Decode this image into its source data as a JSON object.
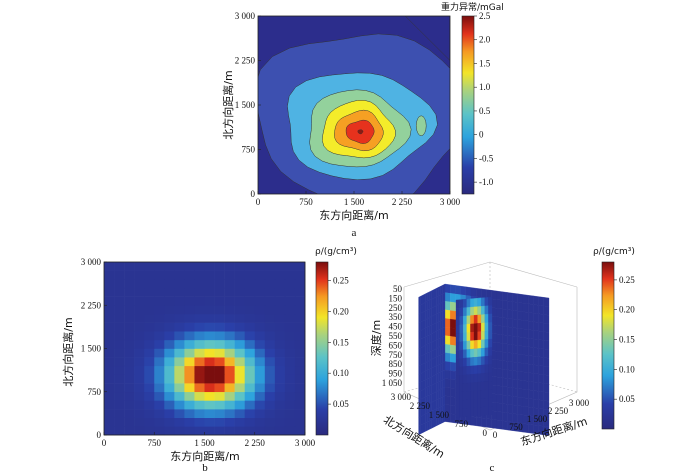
{
  "chart_data": [
    {
      "panel": "a",
      "type": "heatmap",
      "subtype": "filled-contour",
      "xlabel": "东方向距离/m",
      "ylabel": "北方向距离/m",
      "xticks": [
        "0",
        "750",
        "1 500",
        "2 250",
        "3 000"
      ],
      "yticks": [
        "0",
        "750",
        "1 500",
        "2 250",
        "3 000"
      ],
      "xlim": [
        0,
        3000
      ],
      "ylim": [
        0,
        3000
      ],
      "colorbar": {
        "label": "重力异常/mGal",
        "range": [
          -1.25,
          2.5
        ],
        "ticks": [
          "-1.0",
          "-0.5",
          "0",
          "0.5",
          "1.0",
          "1.5",
          "2.0",
          "2.5"
        ],
        "tick_values": [
          -1.0,
          -0.5,
          0,
          0.5,
          1.0,
          1.5,
          2.0,
          2.5
        ]
      },
      "anomaly_center": [
        1600,
        1050
      ],
      "peak_value": 2.4,
      "contour_levels": [
        -1.0,
        -0.5,
        0,
        0.5,
        1.0,
        1.5,
        2.0
      ],
      "colors": [
        "#2c2d8c",
        "#3d50b0",
        "#4fb3e3",
        "#93d19c",
        "#f4ec2a",
        "#f6a023",
        "#e6321d",
        "#8c1a12"
      ]
    },
    {
      "panel": "b",
      "type": "heatmap",
      "subtype": "pixel-grid",
      "grid": [
        20,
        20
      ],
      "xlabel": "东方向距离/m",
      "ylabel": "北方向距离/m",
      "xticks": [
        "0",
        "750",
        "1 500",
        "2 250",
        "3 000"
      ],
      "yticks": [
        "0",
        "750",
        "1 500",
        "2 250",
        "3 000"
      ],
      "xlim": [
        0,
        3000
      ],
      "ylim": [
        0,
        3000
      ],
      "colorbar": {
        "label": "ρ/(g/cm³)",
        "range": [
          0,
          0.28
        ],
        "ticks": [
          "0.05",
          "0.10",
          "0.15",
          "0.20",
          "0.25"
        ],
        "tick_values": [
          0.05,
          0.1,
          0.15,
          0.2,
          0.25
        ]
      },
      "anomaly_center": [
        1600,
        1050
      ],
      "peak_value": 0.28
    },
    {
      "panel": "c",
      "type": "heatmap",
      "subtype": "3d-slices",
      "xlabel": "东方向距离/m",
      "ylabel": "北方向距离/m",
      "zlabel": "深度/m",
      "xticks": [
        "0",
        "750",
        "1 500",
        "2 250",
        "3 000"
      ],
      "yticks": [
        "0",
        "750",
        "1 500",
        "2 250",
        "3 000"
      ],
      "zticks": [
        "50",
        "150",
        "250",
        "350",
        "450",
        "550",
        "650",
        "750",
        "850",
        "950",
        "1 050"
      ],
      "colorbar": {
        "label": "ρ/(g/cm³)",
        "range": [
          0,
          0.28
        ],
        "ticks": [
          "0.05",
          "0.10",
          "0.15",
          "0.20",
          "0.25"
        ],
        "tick_values": [
          0.05,
          0.1,
          0.15,
          0.2,
          0.25
        ]
      },
      "anomaly_center_depth": 350,
      "peak_value": 0.28
    }
  ]
}
